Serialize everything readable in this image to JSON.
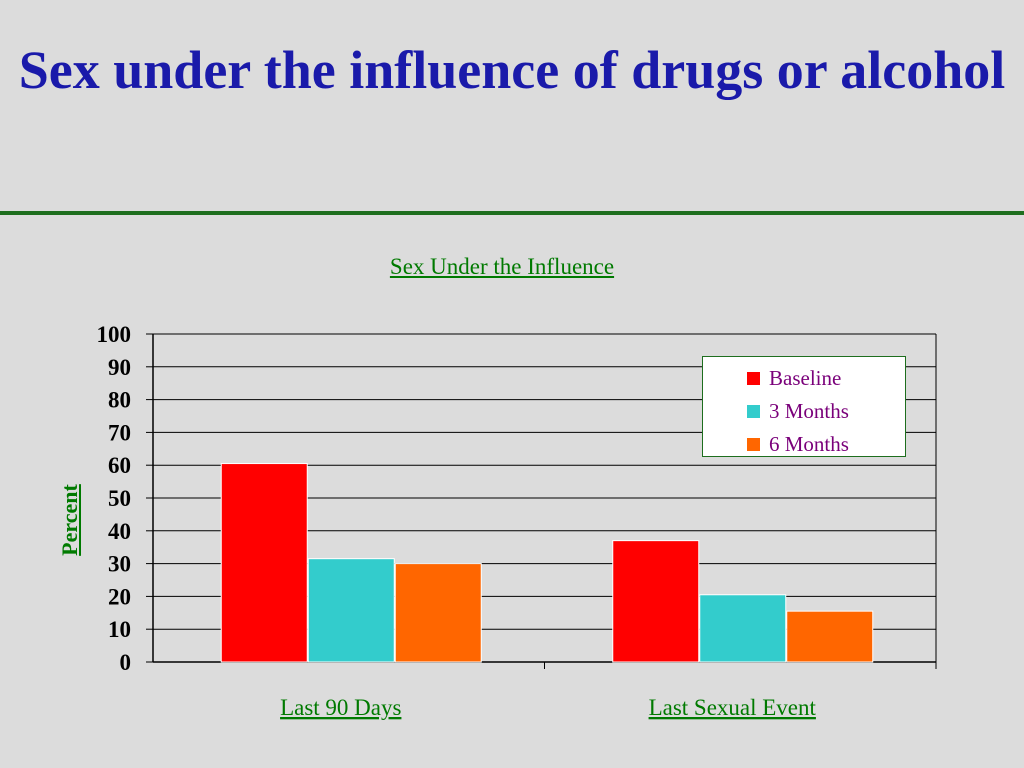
{
  "slide": {
    "title": "Sex under the influence of drugs or alcohol"
  },
  "chart_data": {
    "type": "bar",
    "title": "Sex Under the Influence",
    "xlabel": "",
    "ylabel": "Percent",
    "ylim": [
      0,
      100
    ],
    "yticks": [
      "0",
      "10",
      "20",
      "30",
      "40",
      "50",
      "60",
      "70",
      "80",
      "90",
      "100"
    ],
    "categories": [
      "Last 90 Days",
      "Last Sexual Event"
    ],
    "series": [
      {
        "name": "Baseline",
        "color": "#ff0000",
        "values": [
          60.5,
          37
        ]
      },
      {
        "name": "3 Months",
        "color": "#33cccc",
        "values": [
          31.5,
          20.5
        ]
      },
      {
        "name": "6 Months",
        "color": "#ff6600",
        "values": [
          30,
          15.5
        ]
      }
    ],
    "grid": true,
    "legend": "top-right"
  }
}
